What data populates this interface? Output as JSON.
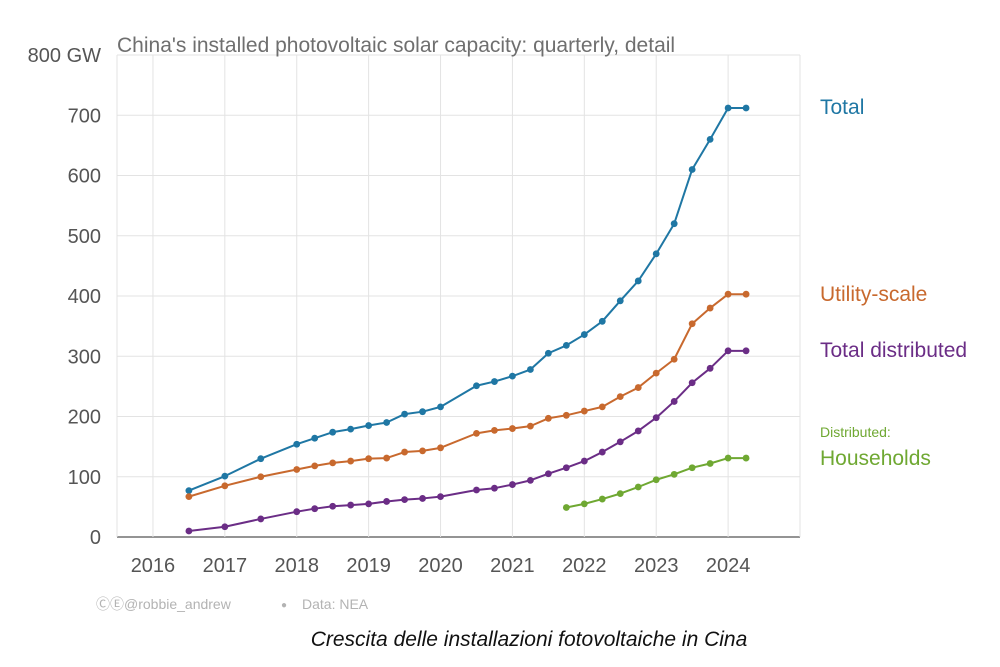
{
  "chart_data": {
    "type": "line",
    "title": "China's installed photovoltaic solar capacity: quarterly, detail",
    "unit_label": "800 GW",
    "ylim": [
      0,
      800
    ],
    "y_ticks": [
      0,
      100,
      200,
      300,
      400,
      500,
      600,
      700,
      800
    ],
    "y_tick_labels": [
      "0",
      "100",
      "200",
      "300",
      "400",
      "500",
      "600",
      "700",
      "800 GW"
    ],
    "x_ticks": [
      2016,
      2017,
      2018,
      2019,
      2020,
      2021,
      2022,
      2023,
      2024
    ],
    "x_tick_labels": [
      "2016",
      "2017",
      "2018",
      "2019",
      "2020",
      "2021",
      "2022",
      "2023",
      "2024"
    ],
    "xlim": [
      2015.5,
      2025.0
    ],
    "grid": true,
    "series": [
      {
        "name": "Total",
        "color": "#1f77a4",
        "x": [
          2016.5,
          2017.0,
          2017.5,
          2018.0,
          2018.25,
          2018.5,
          2018.75,
          2019.0,
          2019.25,
          2019.5,
          2019.75,
          2020.0,
          2020.5,
          2020.75,
          2021.0,
          2021.25,
          2021.5,
          2021.75,
          2022.0,
          2022.25,
          2022.5,
          2022.75,
          2023.0,
          2023.25,
          2023.5,
          2023.75,
          2024.0,
          2024.25
        ],
        "y": [
          77,
          101,
          130,
          154,
          164,
          174,
          179,
          185,
          190,
          204,
          208,
          216,
          251,
          258,
          267,
          278,
          305,
          318,
          336,
          358,
          392,
          425,
          470,
          520,
          610,
          660,
          712,
          712
        ]
      },
      {
        "name": "Utility-scale",
        "color": "#c8692e",
        "x": [
          2016.5,
          2017.0,
          2017.5,
          2018.0,
          2018.25,
          2018.5,
          2018.75,
          2019.0,
          2019.25,
          2019.5,
          2019.75,
          2020.0,
          2020.5,
          2020.75,
          2021.0,
          2021.25,
          2021.5,
          2021.75,
          2022.0,
          2022.25,
          2022.5,
          2022.75,
          2023.0,
          2023.25,
          2023.5,
          2023.75,
          2024.0,
          2024.25
        ],
        "y": [
          67,
          85,
          100,
          112,
          118,
          123,
          126,
          130,
          131,
          141,
          143,
          148,
          172,
          177,
          180,
          184,
          197,
          202,
          209,
          216,
          233,
          248,
          272,
          295,
          354,
          380,
          403,
          403
        ]
      },
      {
        "name": "Total distributed",
        "color": "#6b2d86",
        "x": [
          2016.5,
          2017.0,
          2017.5,
          2018.0,
          2018.25,
          2018.5,
          2018.75,
          2019.0,
          2019.25,
          2019.5,
          2019.75,
          2020.0,
          2020.5,
          2020.75,
          2021.0,
          2021.25,
          2021.5,
          2021.75,
          2022.0,
          2022.25,
          2022.5,
          2022.75,
          2023.0,
          2023.25,
          2023.5,
          2023.75,
          2024.0,
          2024.25
        ],
        "y": [
          10,
          17,
          30,
          42,
          47,
          51,
          53,
          55,
          59,
          62,
          64,
          67,
          78,
          81,
          87,
          94,
          105,
          115,
          126,
          141,
          158,
          176,
          198,
          225,
          256,
          280,
          309,
          309
        ]
      },
      {
        "name": "Households",
        "label_prefix": "Distributed:",
        "color": "#6fa832",
        "x": [
          2021.75,
          2022.0,
          2022.25,
          2022.5,
          2022.75,
          2023.0,
          2023.25,
          2023.5,
          2023.75,
          2024.0,
          2024.25
        ],
        "y": [
          49,
          55,
          63,
          72,
          83,
          95,
          104,
          115,
          122,
          131,
          131
        ]
      }
    ]
  },
  "footer": {
    "credit": "ⒸⒺ@robbie_andrew",
    "separator": "●",
    "source": "Data: NEA"
  },
  "caption": "Crescita delle installazioni fotovoltaiche in Cina"
}
